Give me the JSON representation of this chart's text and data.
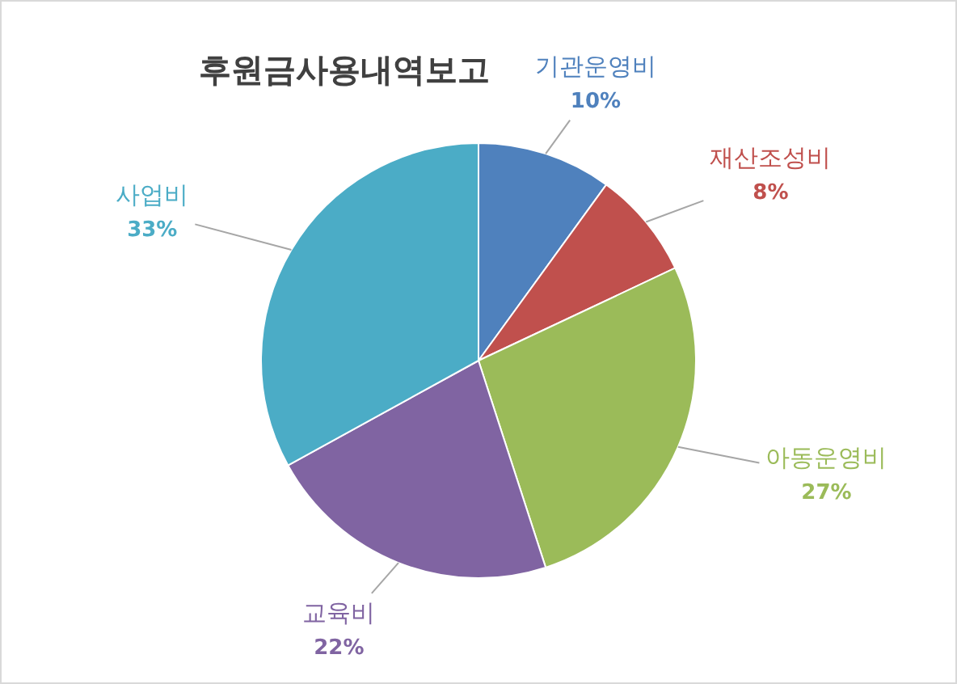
{
  "chart_data": {
    "type": "pie",
    "title": "후원금사용내역보고",
    "categories": [
      "기관운영비",
      "재산조성비",
      "아동운영비",
      "교육비",
      "사업비"
    ],
    "values": [
      10,
      8,
      27,
      22,
      33
    ],
    "colors": [
      "#4f81bd",
      "#c0504d",
      "#9bbb59",
      "#8064a2",
      "#4bacc6"
    ],
    "value_labels": [
      "10%",
      "8%",
      "27%",
      "22%",
      "33%"
    ]
  }
}
